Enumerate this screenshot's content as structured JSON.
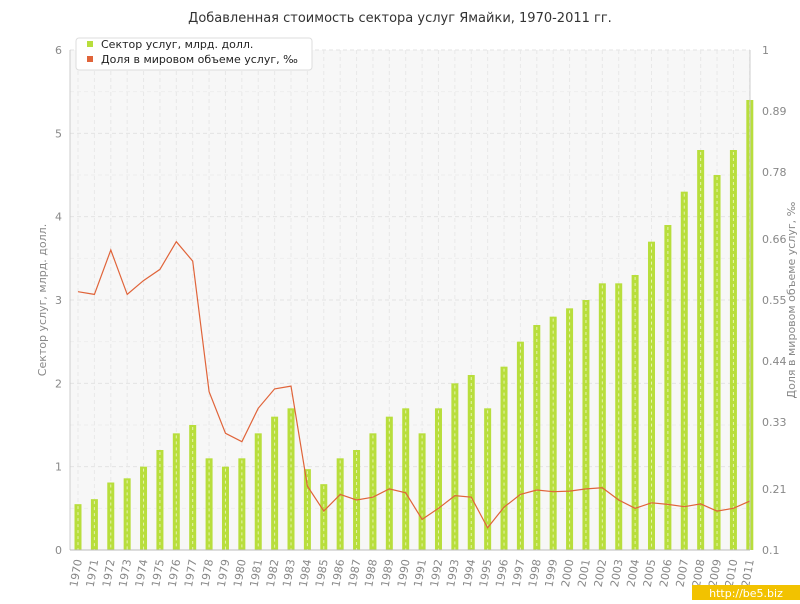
{
  "chart_data": {
    "type": "bar+line",
    "title": "Добавленная стоимость сектора услуг Ямайки, 1970-2011 гг.",
    "ylabel_left": "Сектор услуг, млрд. долл.",
    "ylabel_right": "Доля в мировом объеме услуг, ‰",
    "ylim_left": [
      0,
      6
    ],
    "ylim_right": [
      0.1,
      1
    ],
    "yticks_left": [
      "0",
      "1",
      "2",
      "3",
      "4",
      "5",
      "6"
    ],
    "yticks_right": [
      "0.1",
      "0.21",
      "0.33",
      "0.44",
      "0.55",
      "0.66",
      "0.78",
      "0.89",
      "1"
    ],
    "grid": true,
    "legend_position": "top-left",
    "categories": [
      "1970",
      "1971",
      "1972",
      "1973",
      "1974",
      "1975",
      "1976",
      "1977",
      "1978",
      "1979",
      "1980",
      "1981",
      "1982",
      "1983",
      "1984",
      "1985",
      "1986",
      "1987",
      "1988",
      "1989",
      "1990",
      "1991",
      "1992",
      "1993",
      "1994",
      "1995",
      "1996",
      "1997",
      "1998",
      "1999",
      "2000",
      "2001",
      "2002",
      "2003",
      "2004",
      "2005",
      "2006",
      "2007",
      "2008",
      "2009",
      "2010",
      "2011"
    ],
    "series": [
      {
        "name": "Сектор услуг, млрд. долл.",
        "type": "bar",
        "axis": "left",
        "color": "#b8de3c",
        "values": [
          0.55,
          0.61,
          0.81,
          0.86,
          1.0,
          1.2,
          1.4,
          1.5,
          1.1,
          1.0,
          1.1,
          1.4,
          1.6,
          1.7,
          0.97,
          0.79,
          1.1,
          1.2,
          1.4,
          1.6,
          1.7,
          1.4,
          1.7,
          2.0,
          2.1,
          1.7,
          2.2,
          2.5,
          2.7,
          2.8,
          2.9,
          3.0,
          3.2,
          3.2,
          3.3,
          3.7,
          3.9,
          4.3,
          4.8,
          4.5,
          4.8,
          5.4
        ]
      },
      {
        "name": "Доля в мировом объеме услуг, ‰",
        "type": "line",
        "axis": "right",
        "color": "#e0643a",
        "values": [
          0.565,
          0.56,
          0.64,
          0.56,
          0.585,
          0.605,
          0.655,
          0.62,
          0.385,
          0.31,
          0.295,
          0.355,
          0.39,
          0.395,
          0.215,
          0.17,
          0.2,
          0.19,
          0.195,
          0.21,
          0.203,
          0.155,
          0.175,
          0.198,
          0.195,
          0.14,
          0.177,
          0.2,
          0.208,
          0.205,
          0.206,
          0.21,
          0.212,
          0.19,
          0.175,
          0.185,
          0.182,
          0.178,
          0.183,
          0.17,
          0.175,
          0.188
        ]
      }
    ]
  },
  "watermark": "http://be5.biz"
}
